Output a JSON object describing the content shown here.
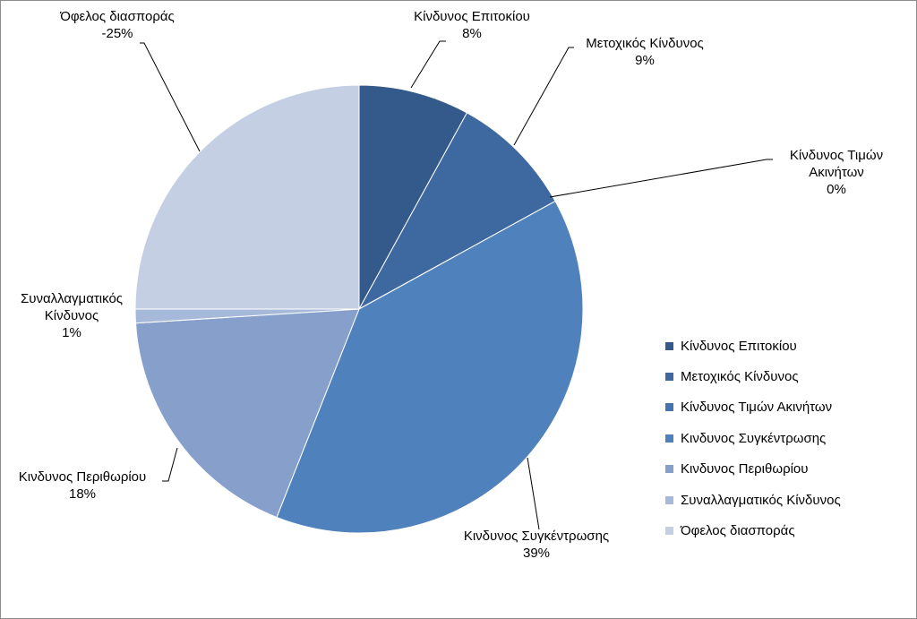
{
  "chart_data": {
    "type": "pie",
    "slices": [
      {
        "label": "Κίνδυνος Επιτοκίου",
        "value": 8,
        "display": "8%",
        "color": "#335a8a"
      },
      {
        "label": "Μετοχικός Κίνδυνος",
        "value": 9,
        "display": "9%",
        "color": "#3e69a0"
      },
      {
        "label": "Κίνδυνος Τιμών Ακινήτων",
        "value": 0,
        "display": "0%",
        "color": "#4574b0"
      },
      {
        "label": "Κινδυνος Συγκέντρωσης",
        "value": 39,
        "display": "39%",
        "color": "#4f81bd"
      },
      {
        "label": "Κινδυνος Περιθωρίου",
        "value": 18,
        "display": "18%",
        "color": "#87a0cb"
      },
      {
        "label": "Συναλλαγματικός Κίνδυνος",
        "value": 1,
        "display": "1%",
        "color": "#a7b9d9"
      },
      {
        "label": "Όφελος διασποράς",
        "value": 25,
        "display": "-25%",
        "color": "#c4cfe3"
      }
    ],
    "legend_position": "right",
    "legend": [
      "Κίνδυνος Επιτοκίου",
      "Μετοχικός Κίνδυνος",
      "Κίνδυνος Τιμών Ακινήτων",
      "Κινδυνος Συγκέντρωσης",
      "Κινδυνος Περιθωρίου",
      "Συναλλαγματικός Κίνδυνος",
      "Όφελος διασποράς"
    ]
  },
  "labels": {
    "interest": {
      "name": "Κίνδυνος Επιτοκίου",
      "pct": "8%"
    },
    "equity": {
      "name": "Μετοχικός Κίνδυνος",
      "pct": "9%"
    },
    "property_1": "Κίνδυνος Τιμών",
    "property_2": "Ακινήτων",
    "property_pct": "0%",
    "concentration": {
      "name": "Κινδυνος Συγκέντρωσης",
      "pct": "39%"
    },
    "spread": {
      "name": "Κινδυνος Περιθωρίου",
      "pct": "18%"
    },
    "fx_1": "Συναλλαγματικός",
    "fx_2": "Κίνδυνος",
    "fx_pct": "1%",
    "diversification": {
      "name": "Όφελος διασποράς",
      "pct": "-25%"
    }
  }
}
